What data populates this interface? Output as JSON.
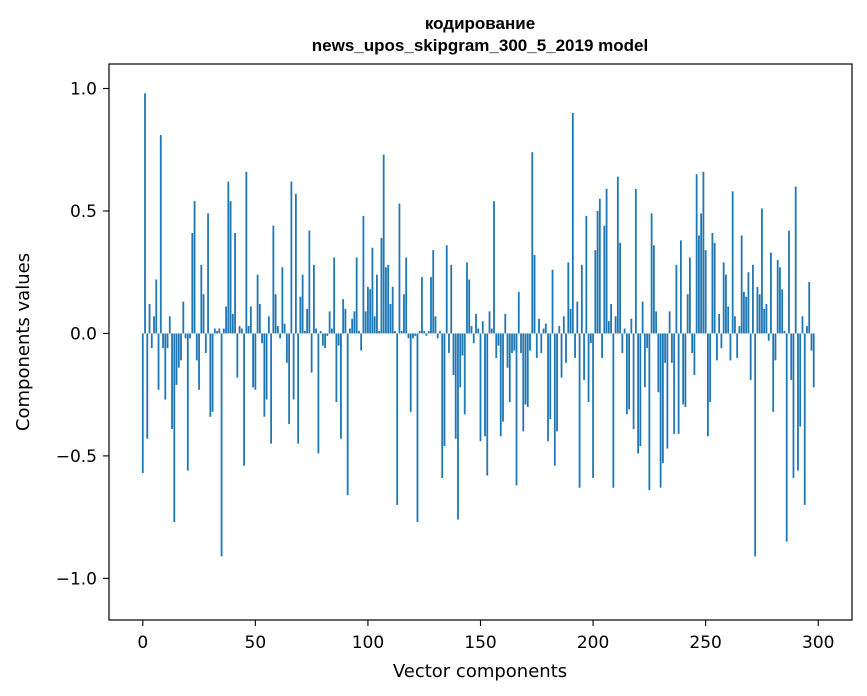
{
  "chart_data": {
    "type": "bar",
    "title": "кодирование",
    "subtitle": "news_upos_skipgram_300_5_2019 model",
    "xlabel": "Vector components",
    "ylabel": "Components values",
    "xlim": [
      -15,
      315
    ],
    "ylim": [
      -1.17,
      1.1
    ],
    "xticks": [
      0,
      50,
      100,
      150,
      200,
      250,
      300
    ],
    "yticks": [
      -1.0,
      -0.5,
      0.0,
      0.5,
      1.0
    ],
    "ytick_labels": [
      "−1.0",
      "−0.5",
      "0.0",
      "0.5",
      "1.0"
    ],
    "bar_color": "#1f77b4",
    "grid": false,
    "series": [
      {
        "values": [
          -0.57,
          0.98,
          -0.43,
          0.12,
          -0.06,
          0.07,
          0.22,
          -0.23,
          0.81,
          -0.06,
          -0.27,
          -0.06,
          0.07,
          -0.39,
          -0.77,
          -0.21,
          -0.14,
          -0.11,
          0.13,
          -0.02,
          -0.56,
          -0.02,
          0.41,
          0.54,
          -0.11,
          -0.23,
          0.28,
          0.16,
          -0.08,
          0.49,
          -0.34,
          -0.32,
          0.02,
          0.01,
          0.02,
          -0.91,
          0.02,
          0.11,
          0.62,
          0.54,
          0.08,
          0.41,
          -0.18,
          0.03,
          0.02,
          -0.54,
          0.66,
          0.03,
          0.11,
          -0.22,
          -0.23,
          0.24,
          0.12,
          -0.04,
          -0.34,
          -0.27,
          0.07,
          -0.45,
          0.44,
          0.16,
          0.03,
          -0.02,
          0.27,
          0.04,
          -0.12,
          -0.37,
          0.62,
          -0.27,
          0.57,
          -0.45,
          0.15,
          0.24,
          0.01,
          0.1,
          0.42,
          -0.16,
          0.28,
          0.02,
          -0.49,
          0.01,
          -0.05,
          -0.06,
          -0.01,
          0.09,
          0.02,
          0.31,
          -0.28,
          -0.05,
          -0.43,
          0.14,
          0.1,
          -0.66,
          0.02,
          0.06,
          0.09,
          0.31,
          0.01,
          -0.07,
          0.48,
          0.09,
          0.19,
          0.18,
          0.35,
          0.07,
          0.24,
          0.01,
          0.39,
          0.73,
          0.27,
          0.28,
          0.12,
          0.19,
          0.01,
          -0.7,
          0.53,
          0.01,
          0.16,
          0.31,
          -0.02,
          -0.32,
          -0.02,
          -0.01,
          -0.77,
          0.01,
          0.23,
          0.01,
          -0.01,
          0.01,
          0.23,
          0.34,
          0.07,
          -0.02,
          0.01,
          -0.59,
          -0.46,
          0.36,
          -0.08,
          0.28,
          -0.17,
          -0.43,
          -0.76,
          -0.22,
          -0.09,
          -0.33,
          0.29,
          0.22,
          0.03,
          -0.04,
          0.08,
          0.02,
          -0.44,
          0.05,
          -0.42,
          -0.58,
          0.09,
          0.02,
          0.54,
          -0.1,
          -0.05,
          -0.42,
          -0.36,
          0.08,
          -0.14,
          -0.28,
          -0.08,
          -0.07,
          -0.62,
          0.17,
          -0.08,
          -0.4,
          -0.29,
          -0.3,
          -0.07,
          0.74,
          0.32,
          -0.1,
          0.06,
          -0.08,
          0.02,
          0.04,
          -0.44,
          -0.35,
          0.26,
          -0.54,
          -0.4,
          0.03,
          -0.18,
          0.07,
          -0.12,
          0.29,
          0.1,
          0.9,
          -0.1,
          0.13,
          -0.63,
          0.28,
          -0.19,
          0.48,
          -0.28,
          -0.04,
          -0.59,
          0.34,
          0.5,
          0.55,
          -0.1,
          0.44,
          0.59,
          0.05,
          0.12,
          -0.63,
          0.07,
          0.64,
          0.37,
          -0.08,
          0.02,
          -0.33,
          -0.31,
          0.06,
          -0.39,
          0.59,
          -0.49,
          -0.46,
          0.13,
          -0.22,
          -0.06,
          -0.64,
          0.49,
          0.36,
          0.09,
          -0.24,
          -0.63,
          -0.53,
          -0.12,
          -0.47,
          0.09,
          -0.12,
          -0.41,
          0.28,
          -0.41,
          0.38,
          -0.29,
          -0.3,
          0.16,
          0.31,
          -0.08,
          -0.17,
          0.65,
          0.4,
          0.49,
          0.66,
          0.34,
          -0.42,
          -0.28,
          0.41,
          0.37,
          -0.11,
          0.08,
          -0.06,
          0.29,
          0.24,
          0.11,
          -0.11,
          0.58,
          0.07,
          -0.1,
          0.03,
          0.4,
          0.17,
          0.15,
          0.25,
          -0.19,
          0.28,
          -0.91,
          0.19,
          0.16,
          0.51,
          0.1,
          0.12,
          -0.03,
          0.33,
          -0.32,
          -0.11,
          0.3,
          0.27,
          0.18,
          0.01,
          -0.85,
          0.42,
          -0.19,
          -0.59,
          0.6,
          -0.56,
          -0.38,
          0.07,
          -0.7,
          0.03,
          0.21,
          -0.07,
          -0.22
        ]
      }
    ]
  }
}
